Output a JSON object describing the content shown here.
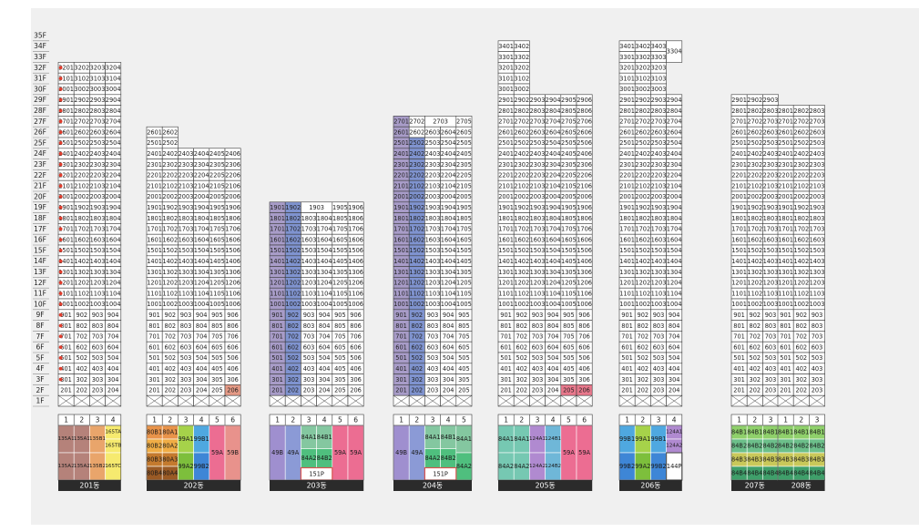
{
  "floor_axis": [
    "35F",
    "34F",
    "33F",
    "32F",
    "31F",
    "30F",
    "29F",
    "28F",
    "27F",
    "26F",
    "25F",
    "24F",
    "23F",
    "22F",
    "21F",
    "20F",
    "19F",
    "18F",
    "17F",
    "16F",
    "15F",
    "14F",
    "13F",
    "12F",
    "11F",
    "10F",
    "9F",
    "8F",
    "7F",
    "6F",
    "5F",
    "4F",
    "3F",
    "2F",
    "1F"
  ],
  "colors": {
    "grid_line": "#3a3a3a",
    "cell_bg": "#ffffff",
    "canvas_bg": "#f0f0f0",
    "label_bar": "#2b2b2b",
    "highlight_red": "#e8788c",
    "highlight_orange": "#e59a86",
    "marker_red": "#e03c2c",
    "band_purple": "#a89cc8",
    "band_blue": "#7f93cf",
    "band_gray": "#bdbdbd",
    "band_pink": "#d3b7c9"
  },
  "buildings": [
    {
      "name": "201동",
      "top_floor": 32,
      "lines": 4,
      "markers": [
        3,
        4,
        5,
        6,
        7,
        8,
        9,
        10,
        11,
        12,
        13,
        14,
        15,
        16,
        17,
        18,
        19,
        20,
        21,
        22,
        23,
        24,
        25,
        26,
        27,
        28,
        29,
        30,
        31,
        32
      ],
      "highlights": [],
      "plan_headers": [
        "1",
        "2",
        "3",
        "4"
      ],
      "plan": [
        {
          "col": 0,
          "span": 1,
          "r0": 0,
          "r1": 2,
          "label": "135A1",
          "color": "#b5827a"
        },
        {
          "col": 0,
          "span": 1,
          "r0": 2,
          "r1": 4,
          "label": "135A2",
          "color": "#b5827a"
        },
        {
          "col": 1,
          "span": 1,
          "r0": 0,
          "r1": 2,
          "label": "135A1",
          "color": "#b5827a"
        },
        {
          "col": 1,
          "span": 1,
          "r0": 2,
          "r1": 4,
          "label": "135A2",
          "color": "#b5827a"
        },
        {
          "col": 2,
          "span": 1,
          "r0": 0,
          "r1": 2,
          "label": "135B1",
          "color": "#e9a56b"
        },
        {
          "col": 2,
          "span": 1,
          "r0": 2,
          "r1": 4,
          "label": "135B2",
          "color": "#e9a56b"
        },
        {
          "col": 3,
          "span": 1,
          "r0": 0,
          "r1": 1,
          "label": "165TA",
          "color": "#f6ea6f"
        },
        {
          "col": 3,
          "span": 1,
          "r0": 1,
          "r1": 2,
          "label": "165TB",
          "color": "#f6ea6f"
        },
        {
          "col": 3,
          "span": 1,
          "r0": 2,
          "r1": 4,
          "label": "165TC",
          "color": "#f6ea6f"
        }
      ]
    },
    {
      "name": "202동",
      "top_floor": 26,
      "lines": 6,
      "short_rows": {
        "26": 2,
        "25": 2
      },
      "markers": [],
      "highlights": [
        {
          "f": 2,
          "l": 6,
          "c": "#e59a86"
        }
      ],
      "plan_headers": [
        "1",
        "2",
        "3",
        "4",
        "5",
        "6"
      ],
      "plan": [
        {
          "col": 0,
          "span": 1,
          "r0": 0,
          "r1": 1,
          "label": "80B1",
          "color": "#e8934a"
        },
        {
          "col": 0,
          "span": 1,
          "r0": 1,
          "r1": 2,
          "label": "80B2",
          "color": "#f0ad45"
        },
        {
          "col": 0,
          "span": 1,
          "r0": 2,
          "r1": 3,
          "label": "80B3",
          "color": "#c47a2e"
        },
        {
          "col": 0,
          "span": 1,
          "r0": 3,
          "r1": 4,
          "label": "80B4",
          "color": "#9a5a25"
        },
        {
          "col": 1,
          "span": 1,
          "r0": 0,
          "r1": 1,
          "label": "80A1",
          "color": "#e8934a"
        },
        {
          "col": 1,
          "span": 1,
          "r0": 1,
          "r1": 2,
          "label": "80A2",
          "color": "#f0ad45"
        },
        {
          "col": 1,
          "span": 1,
          "r0": 2,
          "r1": 3,
          "label": "80A3",
          "color": "#c47a2e"
        },
        {
          "col": 1,
          "span": 1,
          "r0": 3,
          "r1": 4,
          "label": "80A4",
          "color": "#9a5a25"
        },
        {
          "col": 2,
          "span": 1,
          "r0": 0,
          "r1": 2,
          "label": "99A1",
          "color": "#a6d24a"
        },
        {
          "col": 2,
          "span": 1,
          "r0": 2,
          "r1": 4,
          "label": "99A2",
          "color": "#7dbf3c"
        },
        {
          "col": 3,
          "span": 1,
          "r0": 0,
          "r1": 2,
          "label": "99B1",
          "color": "#4fa8e0"
        },
        {
          "col": 3,
          "span": 1,
          "r0": 2,
          "r1": 4,
          "label": "99B2",
          "color": "#3e86d6"
        },
        {
          "col": 4,
          "span": 1,
          "r0": 0,
          "r1": 4,
          "label": "59A",
          "color": "#ec6d92"
        },
        {
          "col": 5,
          "span": 1,
          "r0": 0,
          "r1": 4,
          "label": "59B",
          "color": "#e8928c"
        }
      ]
    },
    {
      "name": "203동",
      "top_floor": 19,
      "lines": 6,
      "merged_3_4": [
        19
      ],
      "markers": [],
      "highlights": [],
      "bands": [
        {
          "l": 1,
          "from": 2,
          "to": 19,
          "c": "#a89cc8"
        },
        {
          "l": 2,
          "from": 2,
          "to": 19,
          "c": "#7f93cf"
        }
      ],
      "plan_headers": [
        "1",
        "2",
        "3",
        "4",
        "5",
        "6"
      ],
      "plan": [
        {
          "col": 0,
          "span": 1,
          "r0": 0,
          "r1": 4,
          "label": "49B",
          "color": "#9f8fcf"
        },
        {
          "col": 1,
          "span": 1,
          "r0": 0,
          "r1": 4,
          "label": "49A",
          "color": "#8b9ad6"
        },
        {
          "col": 2,
          "span": 1,
          "r0": 0,
          "r1": 1.7,
          "label": "84A1",
          "color": "#84c7a0"
        },
        {
          "col": 2,
          "span": 1,
          "r0": 1.7,
          "r1": 3.1,
          "label": "84A2",
          "color": "#4fbf7e"
        },
        {
          "col": 3,
          "span": 1,
          "r0": 0,
          "r1": 1.7,
          "label": "84B1",
          "color": "#84c7a0"
        },
        {
          "col": 3,
          "span": 1,
          "r0": 1.7,
          "r1": 3.1,
          "label": "84B2",
          "color": "#4fbf7e"
        },
        {
          "col": 4,
          "span": 1,
          "r0": 0,
          "r1": 4,
          "label": "59A",
          "color": "#ec6d92"
        },
        {
          "col": 5,
          "span": 1,
          "r0": 0,
          "r1": 4,
          "label": "59A",
          "color": "#ec6d92"
        },
        {
          "col": 2,
          "span": 2,
          "r0": 3.1,
          "r1": 4,
          "label": "151P",
          "color": "#ffffff",
          "border": "#d9534f"
        }
      ]
    },
    {
      "name": "204동",
      "top_floor": 27,
      "lines": 5,
      "merged_3_4": [
        27
      ],
      "markers": [],
      "highlights": [],
      "bands": [
        {
          "l": 1,
          "from": 2,
          "to": 27,
          "c": "#a89cc8"
        },
        {
          "l": 2,
          "from": 2,
          "to": 25,
          "c": "#7f93cf"
        }
      ],
      "plan_headers": [
        "1",
        "2",
        "3",
        "4",
        "5"
      ],
      "plan": [
        {
          "col": 0,
          "span": 1,
          "r0": 0,
          "r1": 4,
          "label": "49B",
          "color": "#9f8fcf"
        },
        {
          "col": 1,
          "span": 1,
          "r0": 0,
          "r1": 4,
          "label": "49A",
          "color": "#8b9ad6"
        },
        {
          "col": 2,
          "span": 1,
          "r0": 0,
          "r1": 1.7,
          "label": "84A1",
          "color": "#84c7a0"
        },
        {
          "col": 2,
          "span": 1,
          "r0": 1.7,
          "r1": 3.1,
          "label": "84A2",
          "color": "#4fbf7e"
        },
        {
          "col": 3,
          "span": 1,
          "r0": 0,
          "r1": 1.7,
          "label": "84B1",
          "color": "#84c7a0"
        },
        {
          "col": 3,
          "span": 1,
          "r0": 1.7,
          "r1": 3.1,
          "label": "84B2",
          "color": "#4fbf7e"
        },
        {
          "col": 4,
          "span": 1,
          "r0": 0,
          "r1": 2,
          "label": "84A1",
          "color": "#84c7a0"
        },
        {
          "col": 4,
          "span": 1,
          "r0": 2,
          "r1": 4,
          "label": "84A2",
          "color": "#4fbf7e"
        },
        {
          "col": 2,
          "span": 2,
          "r0": 3.1,
          "r1": 4,
          "label": "151P",
          "color": "#ffffff",
          "border": "#d9534f"
        }
      ]
    },
    {
      "name": "205동",
      "top_floor": 34,
      "lines": 6,
      "short_rows": {
        "34": 2,
        "33": 2,
        "32": 2,
        "31": 2,
        "30": 2
      },
      "markers": [],
      "highlights": [
        {
          "f": 2,
          "l": 5,
          "c": "#e8788c"
        },
        {
          "f": 2,
          "l": 6,
          "c": "#e8788c"
        }
      ],
      "plan_headers": [
        "1",
        "2",
        "3",
        "4",
        "5",
        "6"
      ],
      "plan": [
        {
          "col": 0,
          "span": 1,
          "r0": 0,
          "r1": 2,
          "label": "84A1",
          "color": "#76c8b2"
        },
        {
          "col": 0,
          "span": 1,
          "r0": 2,
          "r1": 4,
          "label": "84A2",
          "color": "#76c8b2"
        },
        {
          "col": 1,
          "span": 1,
          "r0": 0,
          "r1": 2,
          "label": "84A1",
          "color": "#76c8b2"
        },
        {
          "col": 1,
          "span": 1,
          "r0": 2,
          "r1": 4,
          "label": "84A2",
          "color": "#76c8b2"
        },
        {
          "col": 2,
          "span": 1,
          "r0": 0,
          "r1": 2,
          "label": "124A1",
          "color": "#b08ad0"
        },
        {
          "col": 2,
          "span": 1,
          "r0": 2,
          "r1": 4,
          "label": "124A2",
          "color": "#b08ad0"
        },
        {
          "col": 3,
          "span": 1,
          "r0": 0,
          "r1": 2,
          "label": "124B1",
          "color": "#6fb7d8"
        },
        {
          "col": 3,
          "span": 1,
          "r0": 2,
          "r1": 4,
          "label": "124B2",
          "color": "#6fb7d8"
        },
        {
          "col": 4,
          "span": 1,
          "r0": 0,
          "r1": 4,
          "label": "59A",
          "color": "#ec6d92"
        },
        {
          "col": 5,
          "span": 1,
          "r0": 0,
          "r1": 4,
          "label": "59A",
          "color": "#ec6d92"
        }
      ]
    },
    {
      "name": "206동",
      "top_floor": 34,
      "lines": 4,
      "short_rows": {
        "34": 3,
        "33": 3,
        "32": 3,
        "31": 3,
        "30": 3
      },
      "tall_cell": {
        "l": 4,
        "from": 33,
        "to": 34,
        "label": "3304"
      },
      "markers": [],
      "highlights": [],
      "plan_headers": [
        "1",
        "2",
        "3",
        "4"
      ],
      "plan": [
        {
          "col": 0,
          "span": 1,
          "r0": 0,
          "r1": 2,
          "label": "99B1",
          "color": "#4fa8e0"
        },
        {
          "col": 0,
          "span": 1,
          "r0": 2,
          "r1": 4,
          "label": "99B2",
          "color": "#3e86d6"
        },
        {
          "col": 1,
          "span": 1,
          "r0": 0,
          "r1": 2,
          "label": "99A1",
          "color": "#a6d24a"
        },
        {
          "col": 1,
          "span": 1,
          "r0": 2,
          "r1": 4,
          "label": "99A2",
          "color": "#7dbf3c"
        },
        {
          "col": 2,
          "span": 1,
          "r0": 0,
          "r1": 2,
          "label": "99B1",
          "color": "#4fa8e0"
        },
        {
          "col": 2,
          "span": 1,
          "r0": 2,
          "r1": 4,
          "label": "99B2",
          "color": "#3e86d6"
        },
        {
          "col": 3,
          "span": 1,
          "r0": 0,
          "r1": 1,
          "label": "124A1",
          "color": "#b08ad0"
        },
        {
          "col": 3,
          "span": 1,
          "r0": 1,
          "r1": 2,
          "label": "124A2",
          "color": "#b08ad0"
        },
        {
          "col": 3,
          "span": 1,
          "r0": 2,
          "r1": 4,
          "label": "144P",
          "color": "#ffffff",
          "border": "#5a5a5a"
        }
      ]
    },
    {
      "name": "207동",
      "top_floor": 29,
      "lines": 3,
      "markers": [],
      "highlights": [],
      "plan_headers": [
        "1",
        "2",
        "3"
      ],
      "plan": [
        {
          "col": 0,
          "span": 1,
          "r0": 0,
          "r1": 1,
          "label": "84B1",
          "color": "#8fd06b"
        },
        {
          "col": 0,
          "span": 1,
          "r0": 1,
          "r1": 2,
          "label": "84B2",
          "color": "#6cbf8a"
        },
        {
          "col": 0,
          "span": 1,
          "r0": 2,
          "r1": 3,
          "label": "84B3",
          "color": "#c9c85a"
        },
        {
          "col": 0,
          "span": 1,
          "r0": 3,
          "r1": 4,
          "label": "84B4",
          "color": "#3f9f6a"
        },
        {
          "col": 1,
          "span": 1,
          "r0": 0,
          "r1": 1,
          "label": "84B1",
          "color": "#8fd06b"
        },
        {
          "col": 1,
          "span": 1,
          "r0": 1,
          "r1": 2,
          "label": "84B2",
          "color": "#6cbf8a"
        },
        {
          "col": 1,
          "span": 1,
          "r0": 2,
          "r1": 3,
          "label": "84B3",
          "color": "#c9c85a"
        },
        {
          "col": 1,
          "span": 1,
          "r0": 3,
          "r1": 4,
          "label": "84B4",
          "color": "#3f9f6a"
        },
        {
          "col": 2,
          "span": 1,
          "r0": 0,
          "r1": 1,
          "label": "84B1",
          "color": "#8fd06b"
        },
        {
          "col": 2,
          "span": 1,
          "r0": 1,
          "r1": 2,
          "label": "84B2",
          "color": "#6cbf8a"
        },
        {
          "col": 2,
          "span": 1,
          "r0": 2,
          "r1": 3,
          "label": "84B3",
          "color": "#c9c85a"
        },
        {
          "col": 2,
          "span": 1,
          "r0": 3,
          "r1": 4,
          "label": "84B4",
          "color": "#3f9f6a"
        }
      ]
    },
    {
      "name": "208동",
      "top_floor": 28,
      "lines": 3,
      "markers": [],
      "highlights": [],
      "plan_headers": [
        "1",
        "2",
        "3"
      ],
      "plan": [
        {
          "col": 0,
          "span": 1,
          "r0": 0,
          "r1": 1,
          "label": "84B1",
          "color": "#8fd06b"
        },
        {
          "col": 0,
          "span": 1,
          "r0": 1,
          "r1": 2,
          "label": "84B2",
          "color": "#6cbf8a"
        },
        {
          "col": 0,
          "span": 1,
          "r0": 2,
          "r1": 3,
          "label": "84B3",
          "color": "#c9c85a"
        },
        {
          "col": 0,
          "span": 1,
          "r0": 3,
          "r1": 4,
          "label": "84B4",
          "color": "#3f9f6a"
        },
        {
          "col": 1,
          "span": 1,
          "r0": 0,
          "r1": 1,
          "label": "84B1",
          "color": "#8fd06b"
        },
        {
          "col": 1,
          "span": 1,
          "r0": 1,
          "r1": 2,
          "label": "84B2",
          "color": "#6cbf8a"
        },
        {
          "col": 1,
          "span": 1,
          "r0": 2,
          "r1": 3,
          "label": "84B3",
          "color": "#c9c85a"
        },
        {
          "col": 1,
          "span": 1,
          "r0": 3,
          "r1": 4,
          "label": "84B4",
          "color": "#3f9f6a"
        },
        {
          "col": 2,
          "span": 1,
          "r0": 0,
          "r1": 1,
          "label": "84B1",
          "color": "#8fd06b"
        },
        {
          "col": 2,
          "span": 1,
          "r0": 1,
          "r1": 2,
          "label": "84B2",
          "color": "#6cbf8a"
        },
        {
          "col": 2,
          "span": 1,
          "r0": 2,
          "r1": 3,
          "label": "84B3",
          "color": "#c9c85a"
        },
        {
          "col": 2,
          "span": 1,
          "r0": 3,
          "r1": 4,
          "label": "84B4",
          "color": "#3f9f6a"
        }
      ]
    }
  ]
}
